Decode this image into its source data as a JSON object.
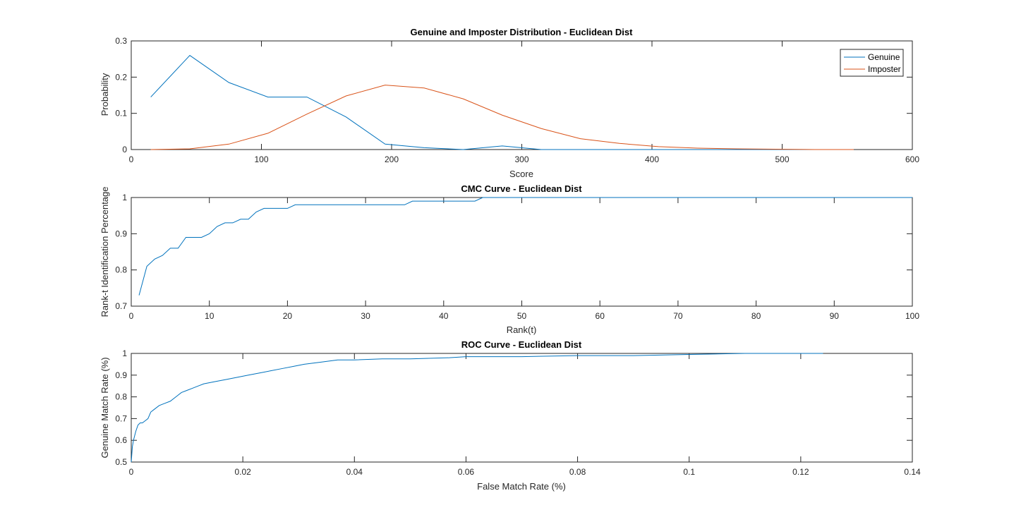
{
  "chart_data": [
    {
      "type": "line",
      "title": "Genuine and Imposter Distribution - Euclidean Dist",
      "xlabel": "Score",
      "ylabel": "Probability",
      "xlim": [
        0,
        600
      ],
      "ylim": [
        0,
        0.3
      ],
      "xticks": [
        0,
        100,
        200,
        300,
        400,
        500,
        600
      ],
      "yticks": [
        0,
        0.1,
        0.2,
        0.3
      ],
      "xtick_labels": [
        "0",
        "100",
        "200",
        "300",
        "400",
        "500",
        "600"
      ],
      "ytick_labels": [
        "0",
        "0.1",
        "0.2",
        "0.3"
      ],
      "legend": "top-right",
      "series": [
        {
          "name": "Genuine",
          "color": "#0072BD",
          "x": [
            15,
            45,
            75,
            105,
            135,
            165,
            195,
            225,
            255,
            285,
            315,
            345,
            375,
            405,
            435,
            465,
            495,
            525,
            555
          ],
          "y": [
            0.145,
            0.26,
            0.185,
            0.145,
            0.145,
            0.09,
            0.015,
            0.005,
            0.0,
            0.01,
            0.0,
            0.0,
            0.0,
            0.0,
            0.0,
            0.0,
            0.0,
            0.0,
            0.0
          ]
        },
        {
          "name": "Imposter",
          "color": "#D95319",
          "x": [
            15,
            45,
            75,
            105,
            135,
            165,
            195,
            225,
            255,
            285,
            315,
            345,
            375,
            405,
            435,
            465,
            495,
            525,
            555
          ],
          "y": [
            0.0,
            0.002,
            0.015,
            0.045,
            0.098,
            0.148,
            0.178,
            0.17,
            0.14,
            0.095,
            0.058,
            0.03,
            0.017,
            0.008,
            0.004,
            0.002,
            0.001,
            0.0,
            0.0
          ]
        }
      ]
    },
    {
      "type": "line",
      "title": "CMC Curve - Euclidean Dist",
      "xlabel": "Rank(t)",
      "ylabel": "Rank-t Identification Percentage",
      "xlim": [
        0,
        100
      ],
      "ylim": [
        0.7,
        1
      ],
      "xticks": [
        0,
        10,
        20,
        30,
        40,
        50,
        60,
        70,
        80,
        90,
        100
      ],
      "yticks": [
        0.7,
        0.8,
        0.9,
        1
      ],
      "xtick_labels": [
        "0",
        "10",
        "20",
        "30",
        "40",
        "50",
        "60",
        "70",
        "80",
        "90",
        "100"
      ],
      "ytick_labels": [
        "0.7",
        "0.8",
        "0.9",
        "1"
      ],
      "series": [
        {
          "color": "#0072BD",
          "x": [
            1,
            2,
            3,
            4,
            5,
            6,
            7,
            8,
            9,
            10,
            11,
            12,
            13,
            14,
            15,
            16,
            17,
            18,
            19,
            20,
            21,
            22,
            23,
            24,
            25,
            26,
            27,
            28,
            29,
            30,
            31,
            32,
            33,
            34,
            35,
            36,
            37,
            38,
            39,
            40,
            41,
            42,
            43,
            44,
            45,
            46,
            47,
            48,
            49,
            50,
            60,
            70,
            80,
            90,
            100
          ],
          "y": [
            0.73,
            0.81,
            0.83,
            0.84,
            0.86,
            0.86,
            0.89,
            0.89,
            0.89,
            0.9,
            0.92,
            0.93,
            0.93,
            0.94,
            0.94,
            0.96,
            0.97,
            0.97,
            0.97,
            0.97,
            0.98,
            0.98,
            0.98,
            0.98,
            0.98,
            0.98,
            0.98,
            0.98,
            0.98,
            0.98,
            0.98,
            0.98,
            0.98,
            0.98,
            0.98,
            0.99,
            0.99,
            0.99,
            0.99,
            0.99,
            0.99,
            0.99,
            0.99,
            0.99,
            1.0,
            1.0,
            1.0,
            1.0,
            1.0,
            1.0,
            1.0,
            1.0,
            1.0,
            1.0,
            1.0
          ]
        }
      ]
    },
    {
      "type": "line",
      "title": "ROC Curve - Euclidean Dist",
      "xlabel": "False Match Rate (%)",
      "ylabel": "Genuine Match Rate (%)",
      "xlim": [
        0,
        0.14
      ],
      "ylim": [
        0.5,
        1
      ],
      "xticks": [
        0,
        0.02,
        0.04,
        0.06,
        0.08,
        0.1,
        0.12,
        0.14
      ],
      "yticks": [
        0.5,
        0.6,
        0.7,
        0.8,
        0.9,
        1
      ],
      "xtick_labels": [
        "0",
        "0.02",
        "0.04",
        "0.06",
        "0.08",
        "0.1",
        "0.12",
        "0.14"
      ],
      "ytick_labels": [
        "0.5",
        "0.6",
        "0.7",
        "0.8",
        "0.9",
        "1"
      ],
      "series": [
        {
          "color": "#0072BD",
          "x": [
            0,
            0.0002,
            0.0004,
            0.0008,
            0.0012,
            0.0016,
            0.002,
            0.0025,
            0.003,
            0.0035,
            0.004,
            0.005,
            0.006,
            0.007,
            0.008,
            0.009,
            0.01,
            0.011,
            0.012,
            0.013,
            0.015,
            0.017,
            0.019,
            0.021,
            0.023,
            0.025,
            0.027,
            0.029,
            0.031,
            0.034,
            0.037,
            0.04,
            0.045,
            0.05,
            0.057,
            0.06,
            0.065,
            0.07,
            0.08,
            0.09,
            0.1,
            0.11,
            0.124
          ],
          "y": [
            0.5,
            0.57,
            0.6,
            0.64,
            0.67,
            0.68,
            0.68,
            0.69,
            0.7,
            0.73,
            0.74,
            0.76,
            0.77,
            0.78,
            0.8,
            0.82,
            0.83,
            0.84,
            0.85,
            0.86,
            0.87,
            0.88,
            0.89,
            0.9,
            0.91,
            0.92,
            0.93,
            0.94,
            0.95,
            0.96,
            0.97,
            0.97,
            0.975,
            0.975,
            0.98,
            0.985,
            0.985,
            0.985,
            0.99,
            0.99,
            0.995,
            1.0,
            1.0
          ]
        }
      ]
    }
  ]
}
